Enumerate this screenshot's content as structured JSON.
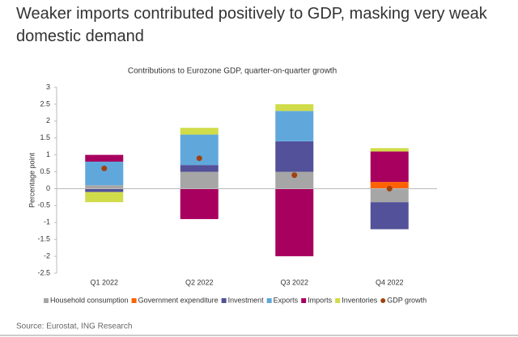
{
  "chart_data": {
    "type": "bar",
    "stacked": true,
    "title": "Weaker imports contributed positively to GDP, masking very weak domestic demand",
    "subtitle": "Contributions to Eurozone GDP, quarter-on-quarter growth",
    "y_label": "Percentage point",
    "source": "Source: Eurostat, ING Research",
    "categories": [
      "Q1 2022",
      "Q2 2022",
      "Q3 2022",
      "Q4 2022"
    ],
    "series": [
      {
        "name": "Household consumption",
        "color": "#a6a6a6",
        "values": [
          0.1,
          0.5,
          0.5,
          -0.4
        ]
      },
      {
        "name": "Government expenditure",
        "color": "#ff6200",
        "values": [
          0,
          0,
          0,
          0.2
        ]
      },
      {
        "name": "Investment",
        "color": "#525199",
        "values": [
          -0.1,
          0.2,
          0.9,
          -0.8
        ]
      },
      {
        "name": "Exports",
        "color": "#60a8dc",
        "values": [
          0.7,
          0.9,
          0.9,
          0
        ]
      },
      {
        "name": "Imports",
        "color": "#a8005f",
        "values": [
          0.2,
          -0.9,
          -2.0,
          0.9
        ]
      },
      {
        "name": "Inventories",
        "color": "#d0dc4a",
        "values": [
          -0.3,
          0.2,
          0.2,
          0.1
        ]
      },
      {
        "name": "GDP growth",
        "color": "#a0420e",
        "type": "scatter",
        "values": [
          0.6,
          0.9,
          0.4,
          0.0
        ]
      }
    ],
    "ylim": [
      -2.5,
      3
    ],
    "yticks": [
      -2.5,
      -2,
      -1.5,
      -1,
      -0.5,
      0,
      0.5,
      1,
      1.5,
      2,
      2.5,
      3
    ]
  }
}
